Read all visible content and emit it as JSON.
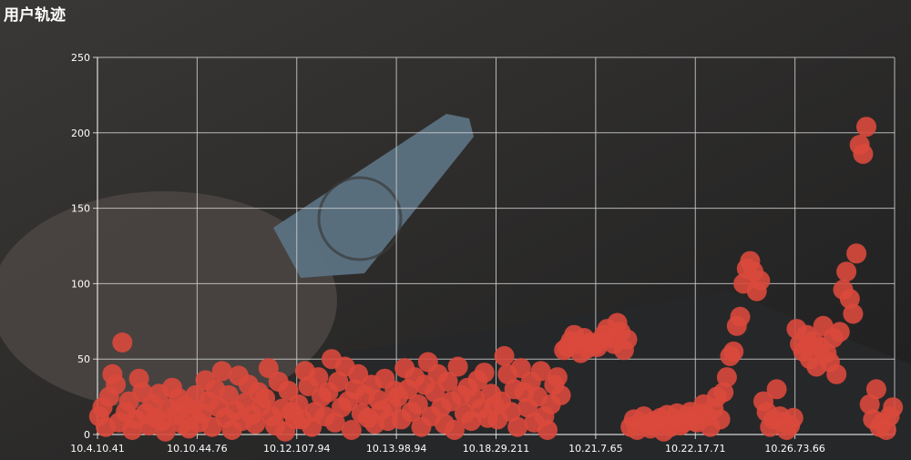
{
  "title": "用户轨迹",
  "colors": {
    "point": "#d9493c",
    "grid": "#cfcfcf",
    "text": "#ffffff",
    "background": "#2a2a2a"
  },
  "background_image": "dimmed photo of hand holding a payment card over a laptop keyboard",
  "chart_data": {
    "type": "scatter",
    "title": "用户轨迹",
    "ylim": [
      0,
      250
    ],
    "y_ticks": [
      0,
      50,
      100,
      150,
      200,
      250
    ],
    "x_ticks": [
      "10.4.10.41",
      "10.10.44.76",
      "10.12.107.94",
      "10.13.98.94",
      "10.18.29.211",
      "10.21.7.65",
      "10.22.17.71",
      "10.26.73.66"
    ],
    "grid": true,
    "points_by_segment": [
      {
        "segment": 0,
        "y": [
          12,
          18,
          5,
          25,
          40,
          33,
          8,
          61,
          15,
          22,
          3,
          10,
          37,
          28,
          14,
          6,
          20,
          11,
          27,
          9,
          2,
          17,
          31,
          13,
          24,
          7,
          19,
          4,
          16,
          26
        ]
      },
      {
        "segment": 1,
        "y": [
          8,
          14,
          36,
          22,
          5,
          30,
          18,
          42,
          11,
          26,
          3,
          16,
          39,
          9,
          21,
          33,
          13,
          7,
          28,
          19,
          24,
          44,
          12,
          6,
          35,
          17,
          2,
          29,
          15,
          10
        ]
      },
      {
        "segment": 2,
        "y": [
          20,
          10,
          42,
          32,
          5,
          15,
          38,
          25,
          12,
          28,
          50,
          8,
          35,
          18,
          45,
          22,
          3,
          30,
          40,
          14,
          26,
          11,
          33,
          7,
          23,
          16,
          37,
          9,
          19,
          29
        ]
      },
      {
        "segment": 3,
        "y": [
          25,
          10,
          44,
          30,
          15,
          38,
          20,
          5,
          33,
          48,
          12,
          28,
          40,
          18,
          7,
          35,
          22,
          3,
          45,
          26,
          14,
          31,
          9,
          24,
          36,
          17,
          41,
          11,
          27,
          19
        ]
      },
      {
        "segment": 4,
        "y": [
          10,
          22,
          52,
          40,
          15,
          30,
          5,
          44,
          28,
          18,
          35,
          8,
          25,
          42,
          12,
          3,
          20,
          33,
          38,
          26,
          56,
          58,
          62,
          66,
          60,
          54,
          64,
          57,
          61,
          59
        ]
      },
      {
        "segment": 5,
        "y": [
          58,
          62,
          66,
          70,
          64,
          60,
          74,
          68,
          56,
          63,
          5,
          10,
          3,
          8,
          12,
          6,
          4,
          9,
          7,
          11,
          2,
          13,
          5,
          10,
          14,
          6,
          8,
          12,
          15,
          9
        ]
      },
      {
        "segment": 6,
        "y": [
          8,
          14,
          20,
          12,
          5,
          17,
          25,
          10,
          28,
          38,
          52,
          55,
          72,
          78,
          100,
          110,
          115,
          108,
          95,
          102,
          22,
          15,
          5,
          10,
          30,
          12,
          8,
          3,
          6,
          11
        ]
      },
      {
        "segment": 7,
        "y": [
          70,
          60,
          55,
          66,
          50,
          62,
          45,
          58,
          72,
          54,
          48,
          64,
          40,
          68,
          96,
          108,
          90,
          80,
          120,
          192,
          186,
          204,
          20,
          10,
          30,
          5,
          8,
          3,
          12,
          18
        ]
      }
    ]
  }
}
